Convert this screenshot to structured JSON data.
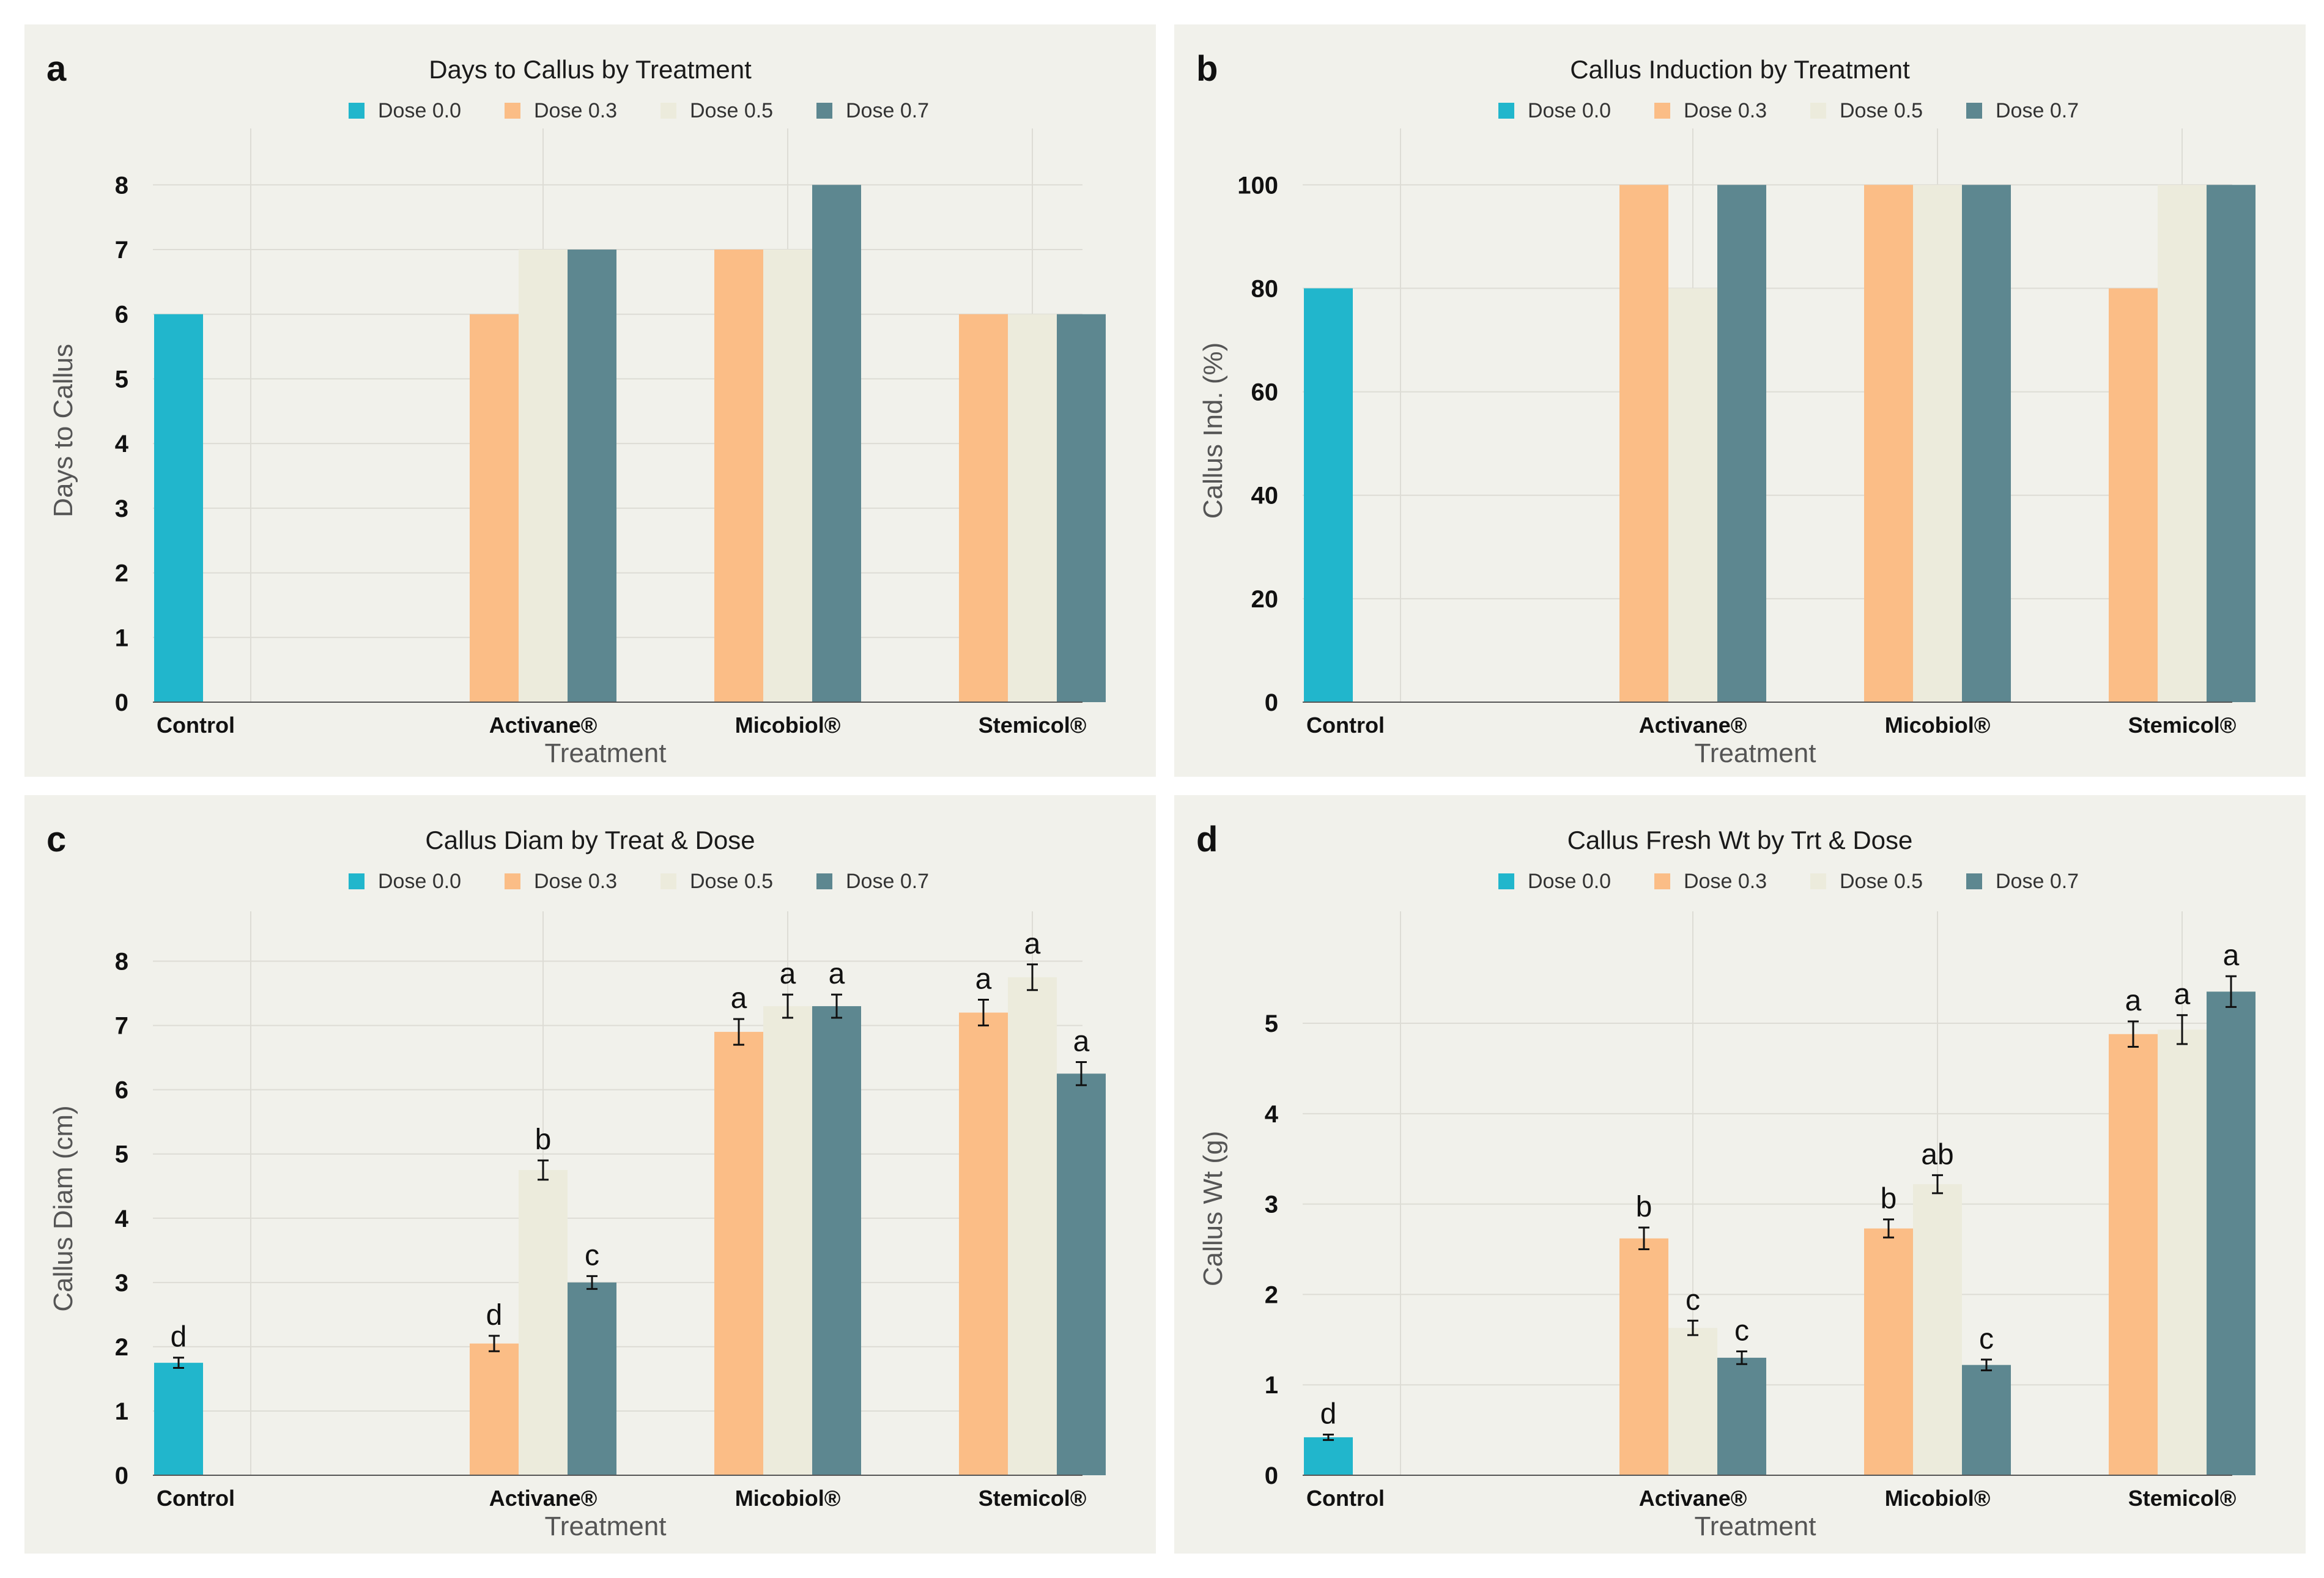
{
  "colors": {
    "Dose 0.0": "#21b6cc",
    "Dose 0.3": "#fbbd86",
    "Dose 0.5": "#ecebdc",
    "Dose 0.7": "#5d8790"
  },
  "chart_data": [
    {
      "letter": "a",
      "type": "bar",
      "title": "Days to Callus by Treatment",
      "xlabel": "Treatment",
      "ylabel": "Days to Callus",
      "legend": [
        "Dose 0.0",
        "Dose 0.3",
        "Dose 0.5",
        "Dose 0.7"
      ],
      "categories": [
        "Control",
        "Activane®",
        "Micobiol®",
        "Stemicol®"
      ],
      "yticks": [
        0,
        1,
        2,
        3,
        4,
        5,
        6,
        7,
        8
      ],
      "ylim": [
        0,
        8.4
      ],
      "series": [
        {
          "name": "Dose 0.0",
          "values": [
            6,
            null,
            null,
            null
          ]
        },
        {
          "name": "Dose 0.3",
          "values": [
            null,
            6,
            7,
            6
          ]
        },
        {
          "name": "Dose 0.5",
          "values": [
            null,
            7,
            7,
            6
          ]
        },
        {
          "name": "Dose 0.7",
          "values": [
            null,
            7,
            8,
            6
          ]
        }
      ]
    },
    {
      "letter": "b",
      "type": "bar",
      "title": "Callus Induction by Treatment",
      "xlabel": "Treatment",
      "ylabel": "Callus Ind. (%)",
      "legend": [
        "Dose 0.0",
        "Dose 0.3",
        "Dose 0.5",
        "Dose 0.7"
      ],
      "categories": [
        "Control",
        "Activane®",
        "Micobiol®",
        "Stemicol®"
      ],
      "yticks": [
        0,
        20,
        40,
        60,
        80,
        100
      ],
      "ylim": [
        0,
        105
      ],
      "series": [
        {
          "name": "Dose 0.0",
          "values": [
            80,
            null,
            null,
            null
          ]
        },
        {
          "name": "Dose 0.3",
          "values": [
            null,
            100,
            100,
            80
          ]
        },
        {
          "name": "Dose 0.5",
          "values": [
            null,
            80,
            100,
            100
          ]
        },
        {
          "name": "Dose 0.7",
          "values": [
            null,
            100,
            100,
            100
          ]
        }
      ]
    },
    {
      "letter": "c",
      "type": "bar",
      "title": "Callus Diam by Treat & Dose",
      "xlabel": "Treatment",
      "ylabel": "Callus Diam (cm)",
      "legend": [
        "Dose 0.0",
        "Dose 0.3",
        "Dose 0.5",
        "Dose 0.7"
      ],
      "categories": [
        "Control",
        "Activane®",
        "Micobiol®",
        "Stemicol®"
      ],
      "yticks": [
        0,
        1,
        2,
        3,
        4,
        5,
        6,
        7,
        8
      ],
      "ylim": [
        0,
        8.3
      ],
      "series": [
        {
          "name": "Dose 0.0",
          "values": [
            1.75,
            null,
            null,
            null
          ],
          "errors": [
            0.08,
            null,
            null,
            null
          ],
          "labels": [
            "d",
            null,
            null,
            null
          ]
        },
        {
          "name": "Dose 0.3",
          "values": [
            null,
            2.05,
            6.9,
            7.2
          ],
          "errors": [
            null,
            0.12,
            0.2,
            0.2
          ],
          "labels": [
            null,
            "d",
            "a",
            "a"
          ]
        },
        {
          "name": "Dose 0.5",
          "values": [
            null,
            4.75,
            7.3,
            7.75
          ],
          "errors": [
            null,
            0.15,
            0.18,
            0.2
          ],
          "labels": [
            null,
            "b",
            "a",
            "a"
          ]
        },
        {
          "name": "Dose 0.7",
          "values": [
            null,
            3.0,
            7.3,
            6.25
          ],
          "errors": [
            null,
            0.1,
            0.18,
            0.18
          ],
          "labels": [
            null,
            "c",
            "a",
            "a"
          ]
        }
      ]
    },
    {
      "letter": "d",
      "type": "bar",
      "title": "Callus Fresh Wt by Trt & Dose",
      "xlabel": "Treatment",
      "ylabel": "Callus Wt (g)",
      "legend": [
        "Dose 0.0",
        "Dose 0.3",
        "Dose 0.5",
        "Dose 0.7"
      ],
      "categories": [
        "Control",
        "Activane®",
        "Micobiol®",
        "Stemicol®"
      ],
      "yticks": [
        0,
        1,
        2,
        3,
        4,
        5
      ],
      "ylim": [
        0,
        5.9
      ],
      "series": [
        {
          "name": "Dose 0.0",
          "values": [
            0.42,
            null,
            null,
            null
          ],
          "errors": [
            0.03,
            null,
            null,
            null
          ],
          "labels": [
            "d",
            null,
            null,
            null
          ]
        },
        {
          "name": "Dose 0.3",
          "values": [
            null,
            2.62,
            2.73,
            4.88
          ],
          "errors": [
            null,
            0.12,
            0.1,
            0.14
          ],
          "labels": [
            null,
            "b",
            "b",
            "a"
          ]
        },
        {
          "name": "Dose 0.5",
          "values": [
            null,
            1.63,
            3.22,
            4.93
          ],
          "errors": [
            null,
            0.08,
            0.1,
            0.16
          ],
          "labels": [
            null,
            "c",
            "ab",
            "a"
          ]
        },
        {
          "name": "Dose 0.7",
          "values": [
            null,
            1.3,
            1.22,
            5.35
          ],
          "errors": [
            null,
            0.07,
            0.06,
            0.17
          ],
          "labels": [
            null,
            "c",
            "c",
            "a"
          ]
        }
      ]
    }
  ]
}
